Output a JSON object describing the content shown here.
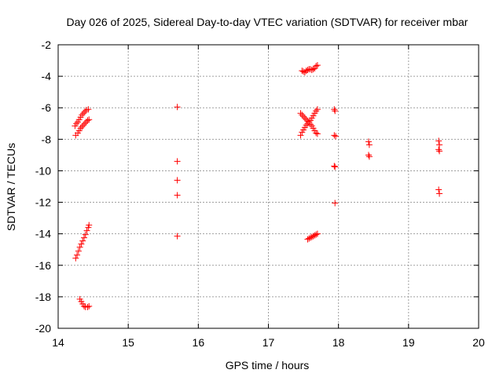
{
  "chart_data": {
    "type": "scatter",
    "title": "Day 026 of 2025, Sidereal Day-to-day VTEC variation (SDTVAR) for receiver mbar",
    "xlabel": "GPS time / hours",
    "ylabel": "SDTVAR / TECUs",
    "xlim": [
      14,
      20
    ],
    "ylim": [
      -20,
      -2
    ],
    "xticks": [
      14,
      15,
      16,
      17,
      18,
      19,
      20
    ],
    "yticks": [
      -20,
      -18,
      -16,
      -14,
      -12,
      -10,
      -8,
      -6,
      -4,
      -2
    ],
    "grid": true,
    "marker": "+",
    "marker_color": "#ff0000",
    "series": [
      {
        "points": [
          [
            14.25,
            -7.75
          ],
          [
            14.28,
            -7.6
          ],
          [
            14.3,
            -7.45
          ],
          [
            14.32,
            -7.3
          ],
          [
            14.34,
            -7.2
          ],
          [
            14.36,
            -7.1
          ],
          [
            14.38,
            -7.0
          ],
          [
            14.4,
            -6.9
          ],
          [
            14.42,
            -6.8
          ],
          [
            14.44,
            -6.75
          ],
          [
            14.24,
            -7.15
          ],
          [
            14.26,
            -7.0
          ],
          [
            14.28,
            -6.9
          ],
          [
            14.3,
            -6.75
          ],
          [
            14.32,
            -6.6
          ],
          [
            14.34,
            -6.45
          ],
          [
            14.36,
            -6.35
          ],
          [
            14.38,
            -6.25
          ],
          [
            14.4,
            -6.15
          ],
          [
            14.43,
            -6.1
          ],
          [
            14.25,
            -15.55
          ],
          [
            14.27,
            -15.35
          ],
          [
            14.29,
            -15.1
          ],
          [
            14.31,
            -14.85
          ],
          [
            14.33,
            -14.65
          ],
          [
            14.35,
            -14.45
          ],
          [
            14.37,
            -14.25
          ],
          [
            14.39,
            -14.05
          ],
          [
            14.41,
            -13.8
          ],
          [
            14.43,
            -13.6
          ],
          [
            14.44,
            -13.45
          ],
          [
            14.31,
            -18.15
          ],
          [
            14.33,
            -18.3
          ],
          [
            14.35,
            -18.45
          ],
          [
            14.37,
            -18.6
          ],
          [
            14.39,
            -18.65
          ],
          [
            14.42,
            -18.65
          ],
          [
            14.44,
            -18.6
          ],
          [
            15.7,
            -5.95
          ],
          [
            15.7,
            -9.4
          ],
          [
            15.7,
            -10.6
          ],
          [
            15.7,
            -11.55
          ],
          [
            15.7,
            -14.15
          ],
          [
            17.48,
            -3.65
          ],
          [
            17.5,
            -3.7
          ],
          [
            17.52,
            -3.75
          ],
          [
            17.54,
            -3.65
          ],
          [
            17.56,
            -3.6
          ],
          [
            17.58,
            -3.55
          ],
          [
            17.6,
            -3.55
          ],
          [
            17.62,
            -3.6
          ],
          [
            17.64,
            -3.55
          ],
          [
            17.66,
            -3.5
          ],
          [
            17.68,
            -3.35
          ],
          [
            17.7,
            -3.3
          ],
          [
            17.46,
            -7.75
          ],
          [
            17.48,
            -7.55
          ],
          [
            17.5,
            -7.4
          ],
          [
            17.52,
            -7.25
          ],
          [
            17.54,
            -7.1
          ],
          [
            17.56,
            -7.0
          ],
          [
            17.58,
            -6.9
          ],
          [
            17.6,
            -6.8
          ],
          [
            17.62,
            -6.65
          ],
          [
            17.64,
            -6.5
          ],
          [
            17.66,
            -6.35
          ],
          [
            17.68,
            -6.2
          ],
          [
            17.7,
            -6.1
          ],
          [
            17.46,
            -6.35
          ],
          [
            17.48,
            -6.45
          ],
          [
            17.5,
            -6.55
          ],
          [
            17.52,
            -6.65
          ],
          [
            17.54,
            -6.75
          ],
          [
            17.56,
            -6.85
          ],
          [
            17.6,
            -7.05
          ],
          [
            17.62,
            -7.15
          ],
          [
            17.64,
            -7.3
          ],
          [
            17.66,
            -7.45
          ],
          [
            17.68,
            -7.6
          ],
          [
            17.7,
            -7.65
          ],
          [
            17.56,
            -14.35
          ],
          [
            17.58,
            -14.3
          ],
          [
            17.6,
            -14.25
          ],
          [
            17.62,
            -14.2
          ],
          [
            17.64,
            -14.15
          ],
          [
            17.66,
            -14.1
          ],
          [
            17.68,
            -14.05
          ],
          [
            17.7,
            -14.0
          ],
          [
            17.94,
            -6.1
          ],
          [
            17.95,
            -6.2
          ],
          [
            17.94,
            -7.75
          ],
          [
            17.96,
            -7.8
          ],
          [
            17.94,
            -9.7
          ],
          [
            17.95,
            -9.75
          ],
          [
            17.95,
            -12.05
          ],
          [
            18.43,
            -8.15
          ],
          [
            18.44,
            -8.35
          ],
          [
            18.43,
            -9.0
          ],
          [
            18.44,
            -9.1
          ],
          [
            19.43,
            -8.1
          ],
          [
            19.44,
            -8.35
          ],
          [
            19.43,
            -8.65
          ],
          [
            19.44,
            -8.75
          ],
          [
            19.43,
            -11.2
          ],
          [
            19.44,
            -11.45
          ]
        ]
      }
    ]
  }
}
